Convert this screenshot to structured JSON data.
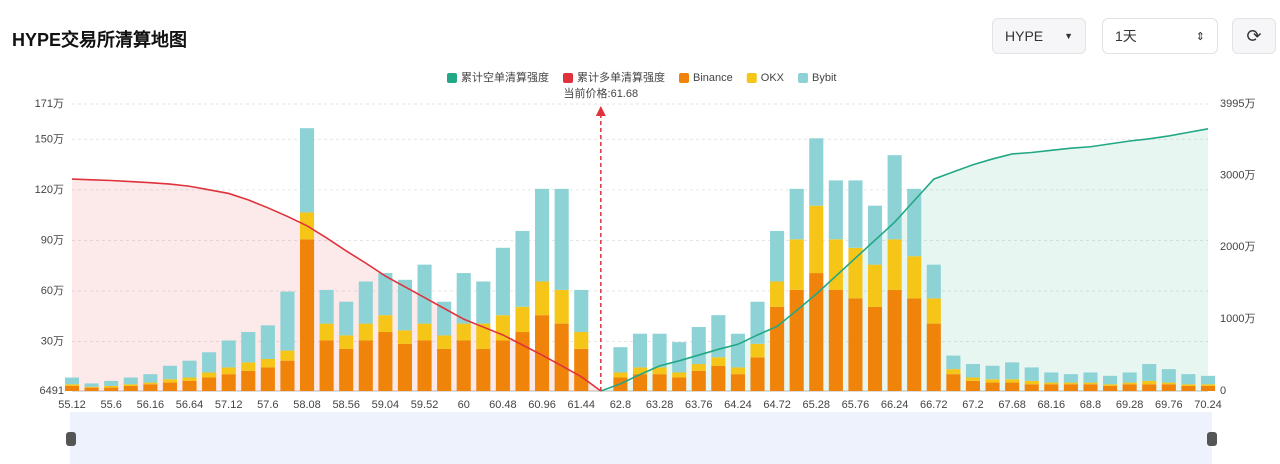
{
  "header": {
    "title": "HYPE交易所清算地图",
    "symbol": "HYPE",
    "period": "1天"
  },
  "chart_data": {
    "type": "bar",
    "stacked": true,
    "grid": true,
    "annotation": "当前价格:61.68",
    "categories": [
      "55.12",
      null,
      "55.6",
      null,
      "56.16",
      null,
      "56.64",
      null,
      "57.12",
      null,
      "57.6",
      null,
      "58.08",
      null,
      "58.56",
      null,
      "59.04",
      null,
      "59.52",
      null,
      "60",
      null,
      "60.48",
      null,
      "60.96",
      null,
      "61.44",
      null,
      "62.8",
      null,
      "63.28",
      null,
      "63.76",
      null,
      "64.24",
      null,
      "64.72",
      null,
      "65.28",
      null,
      "65.76",
      null,
      "66.24",
      null,
      "66.72",
      null,
      "67.2",
      null,
      "67.68",
      null,
      "68.16",
      null,
      "68.8",
      null,
      "69.28",
      null,
      "69.76",
      null,
      "70.24"
    ],
    "series": [
      {
        "name": "累计空单清算强度",
        "color": "#22a884",
        "type": "line",
        "axis": "y2",
        "values": [
          null,
          null,
          null,
          null,
          null,
          null,
          null,
          null,
          null,
          null,
          null,
          null,
          null,
          null,
          null,
          null,
          null,
          null,
          null,
          null,
          null,
          null,
          null,
          null,
          null,
          null,
          null,
          0,
          1000000,
          2300000,
          3500000,
          4200000,
          5000000,
          5800000,
          6500000,
          7800000,
          9000000,
          11200000,
          13500000,
          16000000,
          18500000,
          21000000,
          23500000,
          26500000,
          29500000,
          30500000,
          31500000,
          32300000,
          33000000,
          33200000,
          33500000,
          33800000,
          34000000,
          34400000,
          34800000,
          35100000,
          35500000,
          36000000,
          36500000
        ]
      },
      {
        "name": "累计多单清算强度",
        "color": "#e0323c",
        "type": "line",
        "axis": "y2",
        "values": [
          29500000,
          29400000,
          29300000,
          29150000,
          29000000,
          28800000,
          28500000,
          28000000,
          27500000,
          26600000,
          25500000,
          24300000,
          23000000,
          21300000,
          19500000,
          17800000,
          16000000,
          14500000,
          13000000,
          11500000,
          10000000,
          8900000,
          7800000,
          6400000,
          5000000,
          3500000,
          2000000,
          0,
          null,
          null,
          null,
          null,
          null,
          null,
          null,
          null,
          null,
          null,
          null,
          null,
          null,
          null,
          null,
          null,
          null,
          null,
          null,
          null,
          null,
          null,
          null,
          null,
          null,
          null,
          null,
          null,
          null,
          null,
          null
        ]
      },
      {
        "name": "Binance",
        "color": "#f0830a",
        "values": [
          30000,
          20000,
          20000,
          30000,
          40000,
          50000,
          60000,
          80000,
          100000,
          120000,
          140000,
          180000,
          900000,
          300000,
          250000,
          300000,
          350000,
          280000,
          300000,
          250000,
          300000,
          250000,
          300000,
          350000,
          450000,
          400000,
          250000,
          0,
          80000,
          100000,
          100000,
          80000,
          120000,
          150000,
          100000,
          200000,
          500000,
          600000,
          700000,
          600000,
          550000,
          500000,
          600000,
          550000,
          400000,
          100000,
          60000,
          50000,
          50000,
          40000,
          40000,
          40000,
          40000,
          30000,
          40000,
          40000,
          40000,
          30000,
          30000
        ]
      },
      {
        "name": "OKX",
        "color": "#f5c518",
        "values": [
          10000,
          5000,
          10000,
          10000,
          10000,
          20000,
          20000,
          30000,
          40000,
          50000,
          50000,
          60000,
          160000,
          100000,
          80000,
          100000,
          100000,
          80000,
          100000,
          80000,
          100000,
          150000,
          150000,
          150000,
          200000,
          200000,
          100000,
          0,
          30000,
          40000,
          40000,
          30000,
          40000,
          50000,
          40000,
          80000,
          150000,
          300000,
          400000,
          300000,
          300000,
          250000,
          300000,
          250000,
          150000,
          30000,
          20000,
          20000,
          20000,
          20000,
          10000,
          10000,
          10000,
          10000,
          10000,
          20000,
          10000,
          10000,
          10000
        ]
      },
      {
        "name": "Bybit",
        "color": "#8dd3d6",
        "values": [
          40000,
          20000,
          30000,
          40000,
          50000,
          80000,
          100000,
          120000,
          160000,
          180000,
          200000,
          350000,
          500000,
          200000,
          200000,
          250000,
          250000,
          300000,
          350000,
          200000,
          300000,
          250000,
          400000,
          450000,
          550000,
          600000,
          250000,
          0,
          150000,
          200000,
          200000,
          180000,
          220000,
          250000,
          200000,
          250000,
          300000,
          300000,
          400000,
          350000,
          400000,
          350000,
          500000,
          400000,
          200000,
          80000,
          80000,
          80000,
          100000,
          80000,
          60000,
          50000,
          60000,
          50000,
          60000,
          100000,
          80000,
          60000,
          50000
        ]
      }
    ],
    "ylim": [
      6491,
      1710000
    ],
    "yticks": [
      6491,
      {
        "value": 300000,
        "label": "30万"
      },
      {
        "value": 600000,
        "label": "60万"
      },
      {
        "value": 900000,
        "label": "90万"
      },
      {
        "value": 1200000,
        "label": "120万"
      },
      {
        "value": 1500000,
        "label": "150万"
      },
      {
        "value": 1710000,
        "label": "171万"
      }
    ],
    "y2lim": [
      0,
      39950000
    ],
    "y2ticks": [
      0,
      {
        "value": 10000000,
        "label": "1000万"
      },
      {
        "value": 20000000,
        "label": "2000万"
      },
      {
        "value": 30000000,
        "label": "3000万"
      },
      {
        "value": 39950000,
        "label": "3995万"
      }
    ]
  }
}
